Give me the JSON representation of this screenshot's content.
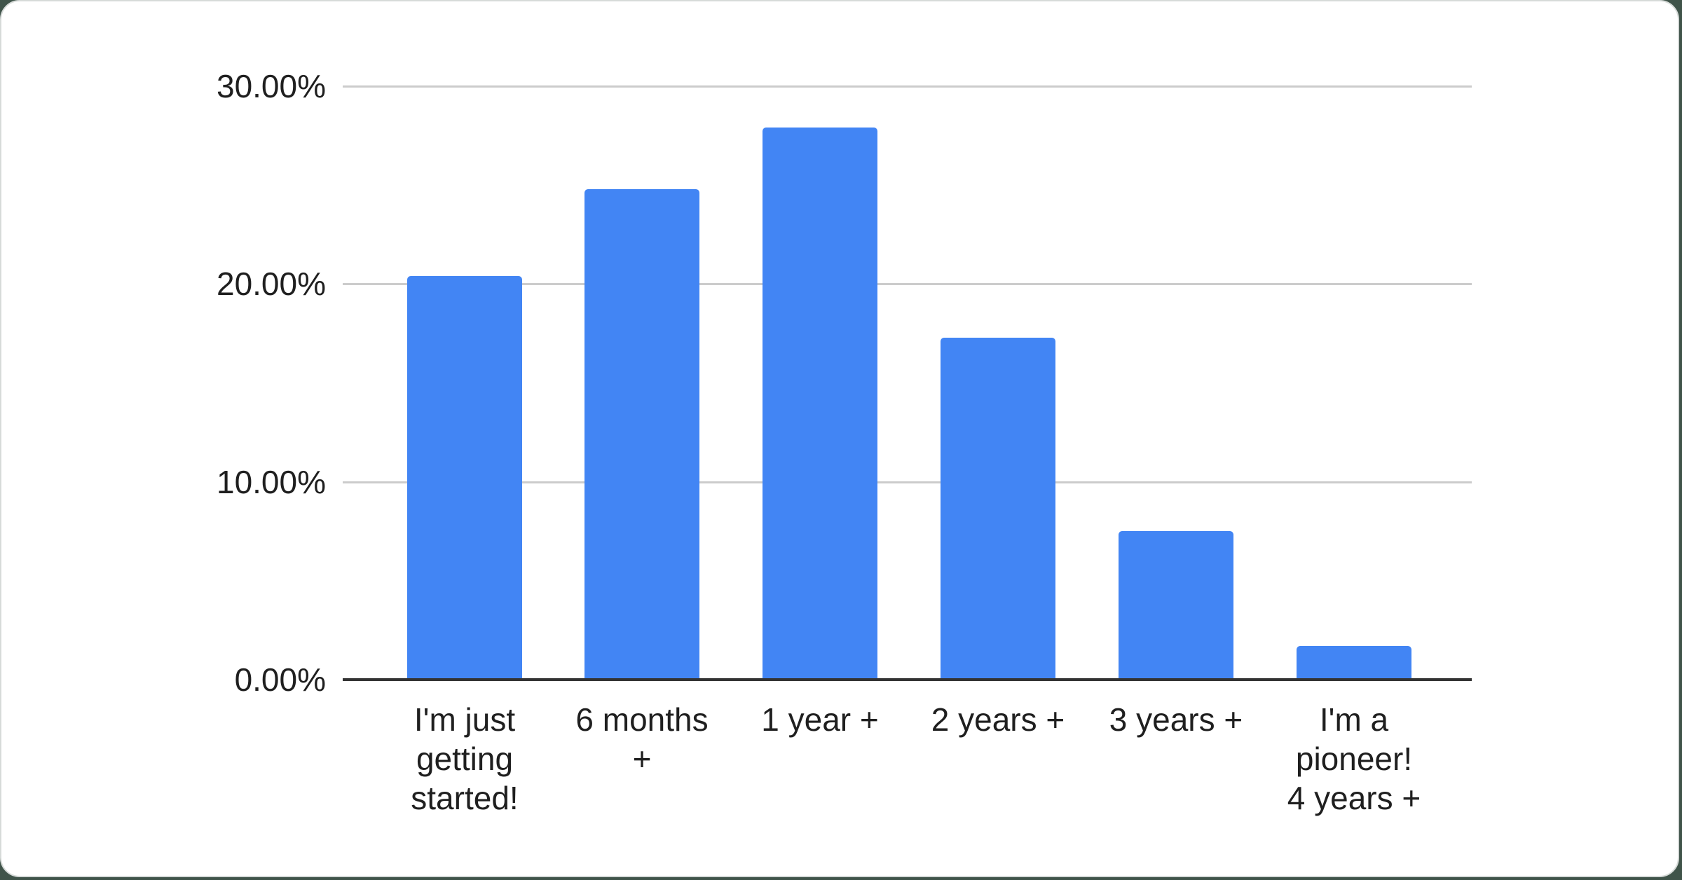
{
  "chart_data": {
    "type": "bar",
    "title": "",
    "categories": [
      "I'm just getting started!",
      "6 months +",
      "1 year +",
      "2 years +",
      "3 years +",
      "I'm a pioneer! 4 years +"
    ],
    "category_lines": [
      "I'm just\ngetting\nstarted!",
      "6 months\n+",
      "1 year +",
      "2 years +",
      "3 years +",
      "I'm a\npioneer!\n4 years +"
    ],
    "values": [
      20.4,
      24.8,
      27.9,
      17.3,
      7.5,
      1.7
    ],
    "unit": "%",
    "xlabel": "",
    "ylabel": "",
    "ylim": [
      0,
      30
    ],
    "yticks": [
      {
        "value": 0,
        "label": "0.00%"
      },
      {
        "value": 10,
        "label": "10.00%"
      },
      {
        "value": 20,
        "label": "20.00%"
      },
      {
        "value": 30,
        "label": "30.00%"
      }
    ],
    "grid": true,
    "legend": "none"
  },
  "colors": {
    "bar": "#4285f4",
    "gridline": "#cccccc",
    "axis_line": "#333333",
    "label_text": "#1f1f1f",
    "card_bg": "#ffffff",
    "page_bg": "#40544a"
  }
}
